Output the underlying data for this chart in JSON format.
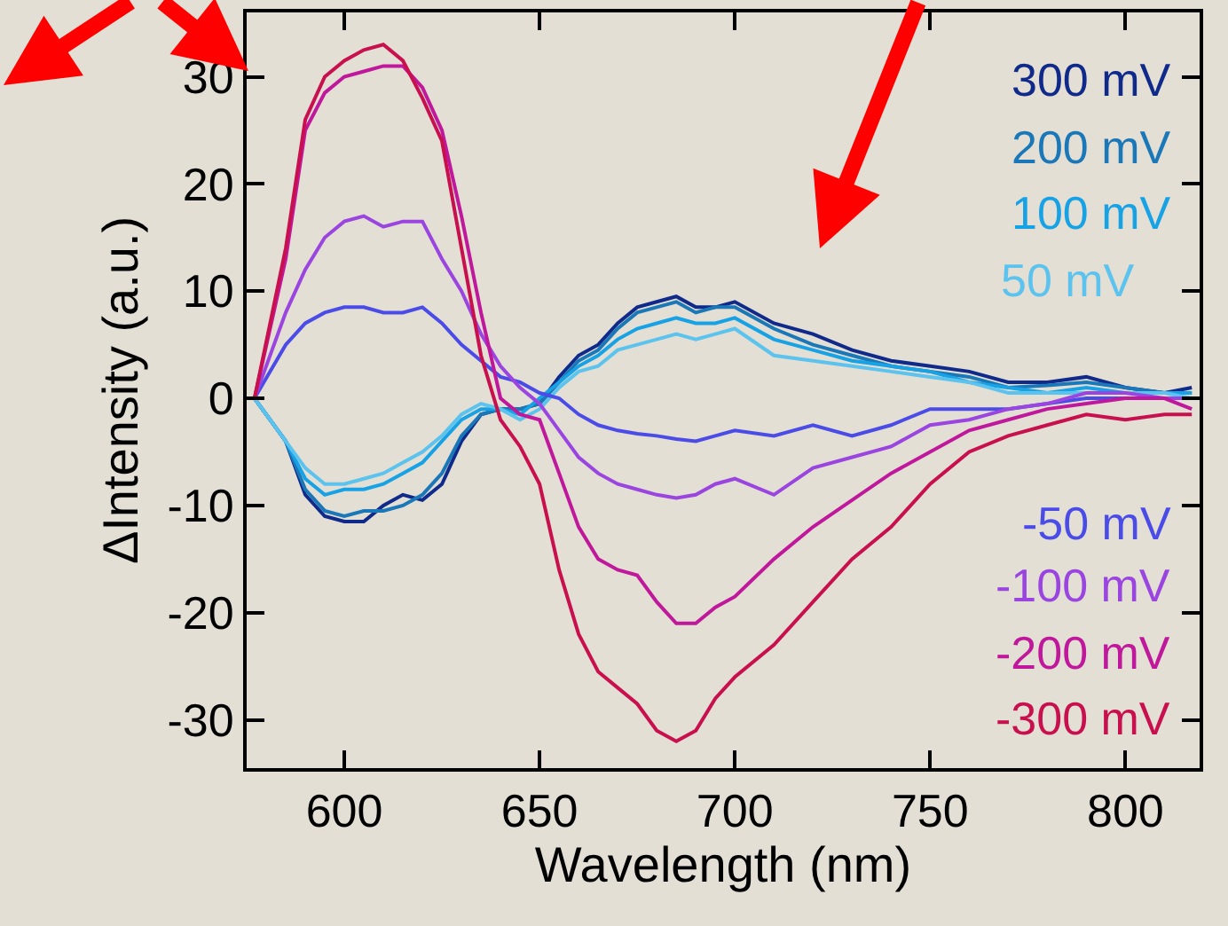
{
  "chart_data": {
    "type": "line",
    "xlabel": "Wavelength (nm)",
    "ylabel": "ΔIntensity (a.u.)",
    "x": [
      577,
      585,
      590,
      595,
      600,
      605,
      610,
      615,
      620,
      625,
      630,
      635,
      640,
      645,
      650,
      655,
      660,
      665,
      670,
      675,
      680,
      685,
      690,
      695,
      700,
      710,
      720,
      730,
      740,
      750,
      760,
      770,
      780,
      790,
      800,
      810,
      817
    ],
    "xlim": [
      575,
      819
    ],
    "ylim": [
      -34.5,
      36
    ],
    "xticks": [
      600,
      650,
      700,
      750,
      800
    ],
    "yticks": [
      -30,
      -20,
      -10,
      0,
      10,
      20,
      30
    ],
    "grid": false,
    "legend": false,
    "marker": "none",
    "line_style": "solid",
    "series": [
      {
        "name": "300 mV",
        "color": "#0f2a8a",
        "values": [
          0,
          -4,
          -9,
          -11,
          -11.5,
          -11.5,
          -10,
          -9,
          -9.5,
          -8,
          -4,
          -1.5,
          -1,
          -1,
          -0.5,
          2,
          4,
          5,
          7,
          8.5,
          9,
          9.5,
          8.5,
          8.5,
          9,
          7,
          6,
          4.5,
          3.5,
          3,
          2.5,
          1.5,
          1.5,
          2,
          1,
          0.5,
          1
        ]
      },
      {
        "name": "200 mV",
        "color": "#1a78b8",
        "values": [
          0,
          -4,
          -8.5,
          -10.5,
          -11,
          -10.5,
          -10.5,
          -10,
          -9,
          -7,
          -3.5,
          -1.5,
          -1,
          -1,
          -0.5,
          1.5,
          3.5,
          4.5,
          6.5,
          8,
          8.5,
          9,
          8,
          8.5,
          8.5,
          6.5,
          5,
          4,
          3,
          2.5,
          2,
          1,
          1.2,
          1.5,
          1,
          0.5,
          0.5
        ]
      },
      {
        "name": "100 mV",
        "color": "#17a2e6",
        "values": [
          0,
          -4,
          -7.5,
          -9,
          -8.5,
          -8.5,
          -8,
          -7,
          -6,
          -4,
          -2,
          -1,
          -1,
          -1.5,
          0,
          1.5,
          3,
          4,
          5.5,
          6.5,
          7,
          7.5,
          7,
          7,
          7.5,
          5.5,
          4.5,
          3.5,
          3,
          2.5,
          1.5,
          1,
          0.5,
          1,
          0.5,
          0.5,
          0.5
        ]
      },
      {
        "name": "50 mV",
        "color": "#5cc3ef",
        "values": [
          0,
          -4,
          -6.5,
          -8,
          -8,
          -7.5,
          -7,
          -6,
          -5,
          -3.5,
          -1.5,
          -0.5,
          -1,
          -2,
          -1,
          1,
          2.5,
          3,
          4.5,
          5,
          5.5,
          6,
          5.5,
          6,
          6.5,
          4,
          3.5,
          3,
          2.5,
          2,
          1.5,
          0.5,
          0.5,
          0.5,
          0.5,
          0.5,
          0
        ]
      },
      {
        "name": "-50 mV",
        "color": "#4b4ce8",
        "values": [
          0,
          5,
          7,
          8,
          8.5,
          8.5,
          8,
          8,
          8.5,
          7,
          5,
          3.5,
          2,
          1.5,
          0.5,
          0,
          -1.5,
          -2.5,
          -3,
          -3.3,
          -3.5,
          -3.8,
          -4,
          -3.5,
          -3,
          -3.5,
          -2.5,
          -3.5,
          -2.5,
          -1,
          -1,
          -1,
          -0.5,
          0,
          0,
          0,
          0
        ]
      },
      {
        "name": "-100 mV",
        "color": "#9a45e0",
        "values": [
          0,
          8,
          12,
          15,
          16.5,
          17,
          16,
          16.5,
          16.5,
          13,
          10,
          6,
          3,
          1,
          -0.5,
          -3,
          -5.5,
          -7,
          -8,
          -8.5,
          -9,
          -9.3,
          -9,
          -8,
          -7.5,
          -9,
          -6.5,
          -5.5,
          -4.5,
          -2.5,
          -2,
          -1,
          -0.5,
          0.5,
          0.5,
          0,
          0
        ]
      },
      {
        "name": "-200 mV",
        "color": "#c0189c",
        "values": [
          0,
          13,
          25,
          28.5,
          30,
          30.5,
          31,
          31,
          29,
          25,
          17,
          8,
          0,
          -1.5,
          -2,
          -7,
          -12,
          -15,
          -16,
          -16.5,
          -19,
          -21,
          -21,
          -19.5,
          -18.5,
          -15,
          -12,
          -9.5,
          -7,
          -5,
          -3,
          -2,
          -1,
          -0.5,
          0,
          0,
          -1
        ]
      },
      {
        "name": "-300 mV",
        "color": "#c8104e",
        "values": [
          0,
          14,
          26,
          30,
          31.5,
          32.5,
          33,
          31.5,
          28,
          24,
          14,
          4,
          -2,
          -4.5,
          -8,
          -16,
          -22,
          -25.5,
          -27,
          -28.5,
          -31,
          -32,
          -31,
          -28,
          -26,
          -23,
          -19,
          -15,
          -12,
          -8,
          -5,
          -3.5,
          -2.5,
          -1.5,
          -2,
          -1.5,
          -1.5
        ]
      }
    ]
  }
}
